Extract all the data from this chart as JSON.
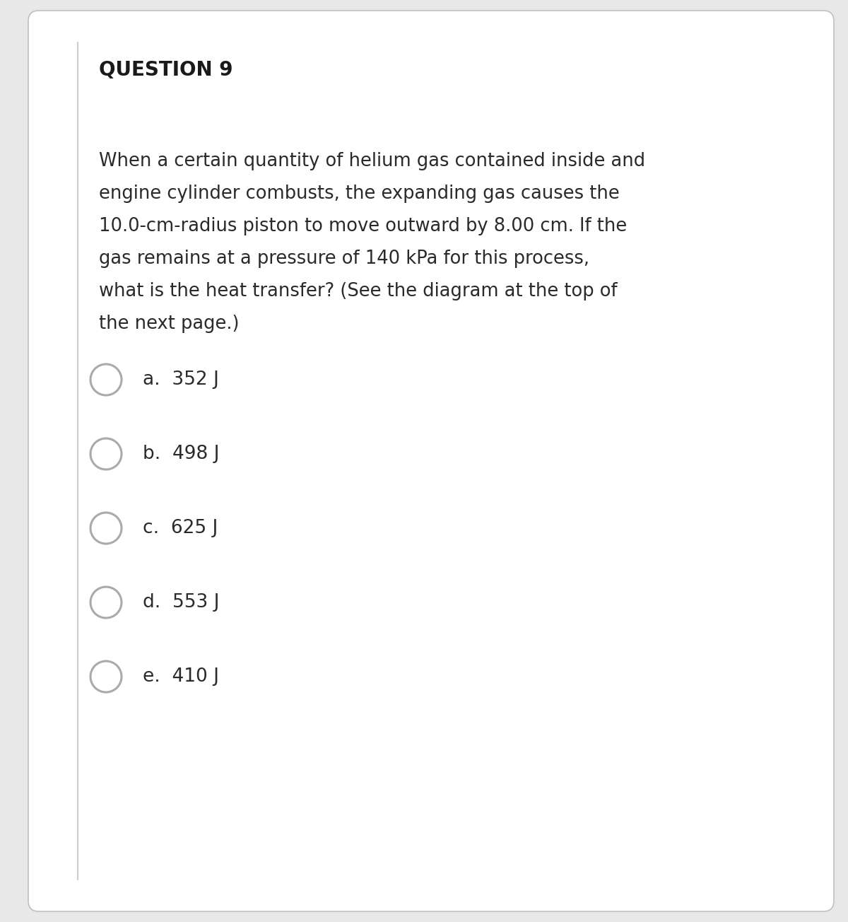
{
  "title": "QUESTION 9",
  "question_lines": [
    "When a certain quantity of helium gas contained inside and",
    "engine cylinder combusts, the expanding gas causes the",
    "10.0-cm-radius piston to move outward by 8.00 cm. If the",
    "gas remains at a pressure of 140 kPa for this process,",
    "what is the heat transfer? (See the diagram at the top of",
    "the next page.)"
  ],
  "choices": [
    "a.  352 J",
    "b.  498 J",
    "c.  625 J",
    "d.  553 J",
    "e.  410 J"
  ],
  "bg_color": "#e8e8e8",
  "card_color": "#ffffff",
  "title_color": "#1a1a1a",
  "text_color": "#2a2a2a",
  "circle_edge_color": "#aaaaaa",
  "title_fontsize": 20,
  "question_fontsize": 18.5,
  "choice_fontsize": 19
}
